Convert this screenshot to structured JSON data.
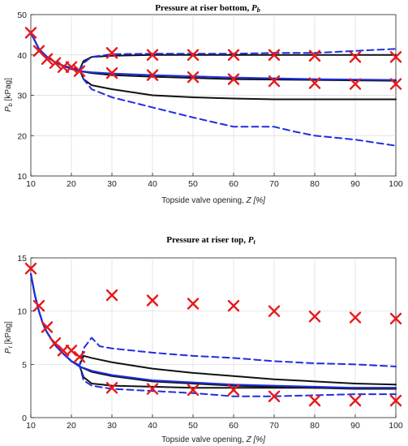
{
  "chart_data": [
    {
      "type": "line",
      "title": "Pressure at riser bottom, ",
      "title_symbol": "P",
      "title_subscript": "b",
      "xlabel": "Topside valve opening, ",
      "xlabel_symbol": "Z [%]",
      "ylabel": " [kPag]",
      "ylabel_symbol": "P",
      "ylabel_subscript": "b",
      "xlim": [
        10,
        100
      ],
      "ylim": [
        10,
        50
      ],
      "xticks": [
        "10",
        "20",
        "30",
        "40",
        "50",
        "60",
        "70",
        "80",
        "90",
        "100"
      ],
      "yticks": [
        "10",
        "20",
        "30",
        "40",
        "50"
      ],
      "grid": true,
      "series": [
        {
          "style": "black-solid",
          "x": [
            10,
            12,
            14,
            16,
            18,
            20,
            22,
            23,
            25,
            30,
            40,
            50,
            60,
            70,
            80,
            90,
            100
          ],
          "y": [
            45.5,
            41.5,
            39.5,
            38.2,
            37.3,
            36.8,
            36.3,
            38.5,
            39.5,
            39.8,
            40.0,
            40.0,
            40.0,
            40.0,
            40.0,
            40.0,
            40.0
          ]
        },
        {
          "style": "black-solid",
          "x": [
            10,
            12,
            14,
            16,
            18,
            20,
            22,
            23,
            25,
            30,
            40,
            50,
            60,
            70,
            80,
            90,
            100
          ],
          "y": [
            45.5,
            41.5,
            39.5,
            38.2,
            37.3,
            36.8,
            36.3,
            34.0,
            32.5,
            31.5,
            30.0,
            29.5,
            29.2,
            29.0,
            29.0,
            29.0,
            29.0
          ]
        },
        {
          "style": "black-solid",
          "x": [
            10,
            12,
            14,
            16,
            18,
            20,
            22,
            25,
            30,
            40,
            50,
            60,
            70,
            80,
            90,
            100
          ],
          "y": [
            45.5,
            41.5,
            39.5,
            38.2,
            37.3,
            36.5,
            36.0,
            35.5,
            35.0,
            34.6,
            34.3,
            34.0,
            33.9,
            33.8,
            33.7,
            33.6
          ]
        },
        {
          "style": "blue-solid",
          "x": [
            10,
            12,
            14,
            16,
            18,
            20,
            22,
            25,
            30,
            40,
            50,
            60,
            70,
            80,
            90,
            100
          ],
          "y": [
            45.5,
            41.5,
            39.5,
            38.2,
            37.3,
            36.5,
            36.0,
            35.7,
            35.4,
            35.0,
            34.7,
            34.4,
            34.2,
            34.0,
            33.9,
            33.8
          ]
        },
        {
          "style": "blue-dashed",
          "x": [
            10,
            12,
            14,
            16,
            18,
            20,
            22,
            23,
            25,
            30,
            40,
            50,
            60,
            70,
            80,
            90,
            100
          ],
          "y": [
            45.5,
            41.5,
            39.5,
            38.2,
            37.3,
            36.8,
            36.3,
            38.0,
            39.5,
            40.2,
            40.3,
            40.3,
            40.3,
            40.5,
            40.5,
            41.0,
            41.5
          ]
        },
        {
          "style": "blue-dashed",
          "x": [
            10,
            12,
            14,
            16,
            18,
            20,
            22,
            23,
            25,
            30,
            40,
            50,
            60,
            65,
            70,
            75,
            80,
            90,
            100
          ],
          "y": [
            45.5,
            41.5,
            39.5,
            38.2,
            37.3,
            36.8,
            36.3,
            34.0,
            31.5,
            29.5,
            27.0,
            24.5,
            22.2,
            22.2,
            22.2,
            21.0,
            20.0,
            19.0,
            17.5
          ]
        }
      ],
      "markers": {
        "style": "red-x",
        "x": [
          10,
          12,
          14,
          16,
          18,
          20,
          22,
          30,
          30,
          40,
          40,
          50,
          50,
          60,
          60,
          70,
          70,
          80,
          80,
          90,
          90,
          100,
          100
        ],
        "y": [
          45.5,
          41.0,
          39.0,
          38.0,
          37.0,
          37.0,
          36.0,
          40.5,
          35.5,
          40.0,
          35.0,
          40.0,
          34.5,
          40.0,
          34.0,
          40.0,
          33.5,
          39.8,
          33.0,
          39.5,
          32.8,
          39.5,
          32.8
        ]
      }
    },
    {
      "type": "line",
      "title": "Pressure at riser top, ",
      "title_symbol": "P",
      "title_subscript": "t",
      "xlabel": "Topside valve opening, ",
      "xlabel_symbol": "Z [%]",
      "ylabel": " [kPag]",
      "ylabel_symbol": "P",
      "ylabel_subscript": "t",
      "xlim": [
        10,
        100
      ],
      "ylim": [
        0,
        15
      ],
      "xticks": [
        "10",
        "20",
        "30",
        "40",
        "50",
        "60",
        "70",
        "80",
        "90",
        "100"
      ],
      "yticks": [
        "0",
        "5",
        "10",
        "15"
      ],
      "grid": true,
      "series": [
        {
          "style": "black-solid",
          "x": [
            10,
            11,
            12,
            13,
            14,
            16,
            18,
            20,
            22,
            23,
            25,
            30,
            40,
            50,
            60,
            70,
            80,
            90,
            100
          ],
          "y": [
            13.5,
            11.5,
            10.0,
            8.8,
            8.0,
            6.8,
            6.0,
            5.3,
            4.9,
            5.8,
            5.6,
            5.2,
            4.6,
            4.2,
            3.9,
            3.6,
            3.4,
            3.2,
            3.1
          ]
        },
        {
          "style": "black-solid",
          "x": [
            10,
            11,
            12,
            13,
            14,
            16,
            18,
            20,
            22,
            23,
            25,
            30,
            40,
            50,
            60,
            70,
            80,
            90,
            100
          ],
          "y": [
            13.5,
            11.5,
            10.0,
            8.8,
            8.0,
            6.8,
            6.0,
            5.3,
            4.9,
            3.8,
            3.2,
            3.0,
            2.9,
            2.8,
            2.8,
            2.8,
            2.8,
            2.8,
            2.8
          ]
        },
        {
          "style": "black-solid",
          "x": [
            10,
            11,
            12,
            13,
            14,
            16,
            18,
            20,
            22,
            25,
            30,
            40,
            50,
            60,
            70,
            80,
            90,
            100
          ],
          "y": [
            13.5,
            11.5,
            10.0,
            8.8,
            8.0,
            6.8,
            6.0,
            5.3,
            4.8,
            4.3,
            3.9,
            3.4,
            3.2,
            3.0,
            2.9,
            2.8,
            2.7,
            2.7
          ]
        },
        {
          "style": "blue-solid",
          "x": [
            10,
            11,
            12,
            13,
            14,
            16,
            18,
            20,
            22,
            25,
            30,
            40,
            50,
            60,
            70,
            80,
            90,
            100
          ],
          "y": [
            13.5,
            11.5,
            10.0,
            8.8,
            8.0,
            6.8,
            6.0,
            5.3,
            4.8,
            4.4,
            4.0,
            3.5,
            3.3,
            3.1,
            3.0,
            2.9,
            2.8,
            2.8
          ]
        },
        {
          "style": "blue-dashed",
          "x": [
            10,
            11,
            12,
            13,
            14,
            16,
            18,
            20,
            22,
            23,
            25,
            27,
            30,
            40,
            50,
            60,
            70,
            80,
            90,
            100
          ],
          "y": [
            13.5,
            11.5,
            10.0,
            8.8,
            8.0,
            6.8,
            6.0,
            5.3,
            4.9,
            6.5,
            7.5,
            6.7,
            6.5,
            6.1,
            5.8,
            5.6,
            5.3,
            5.1,
            5.0,
            4.8
          ]
        },
        {
          "style": "blue-dashed",
          "x": [
            10,
            11,
            12,
            13,
            14,
            16,
            18,
            20,
            22,
            23,
            25,
            30,
            40,
            50,
            60,
            70,
            80,
            90,
            100
          ],
          "y": [
            13.5,
            11.5,
            10.0,
            8.8,
            8.0,
            6.8,
            6.0,
            5.3,
            4.9,
            3.5,
            3.0,
            2.7,
            2.5,
            2.3,
            2.0,
            2.0,
            2.1,
            2.2,
            2.2
          ]
        }
      ],
      "markers": {
        "style": "red-x",
        "x": [
          10,
          12,
          14,
          16,
          18,
          20,
          22,
          30,
          30,
          40,
          40,
          50,
          50,
          60,
          60,
          70,
          70,
          80,
          80,
          90,
          90,
          100,
          100
        ],
        "y": [
          14.0,
          10.5,
          8.5,
          7.0,
          6.3,
          6.3,
          5.7,
          11.5,
          2.8,
          11.0,
          2.7,
          10.7,
          2.6,
          10.5,
          2.6,
          10.0,
          2.0,
          9.5,
          1.6,
          9.4,
          1.6,
          9.3,
          1.6
        ]
      }
    }
  ],
  "colors": {
    "black_line": "#111111",
    "blue_line": "#1f2ee0",
    "marker": "#e8191b",
    "grid": "#d9d9d9"
  }
}
